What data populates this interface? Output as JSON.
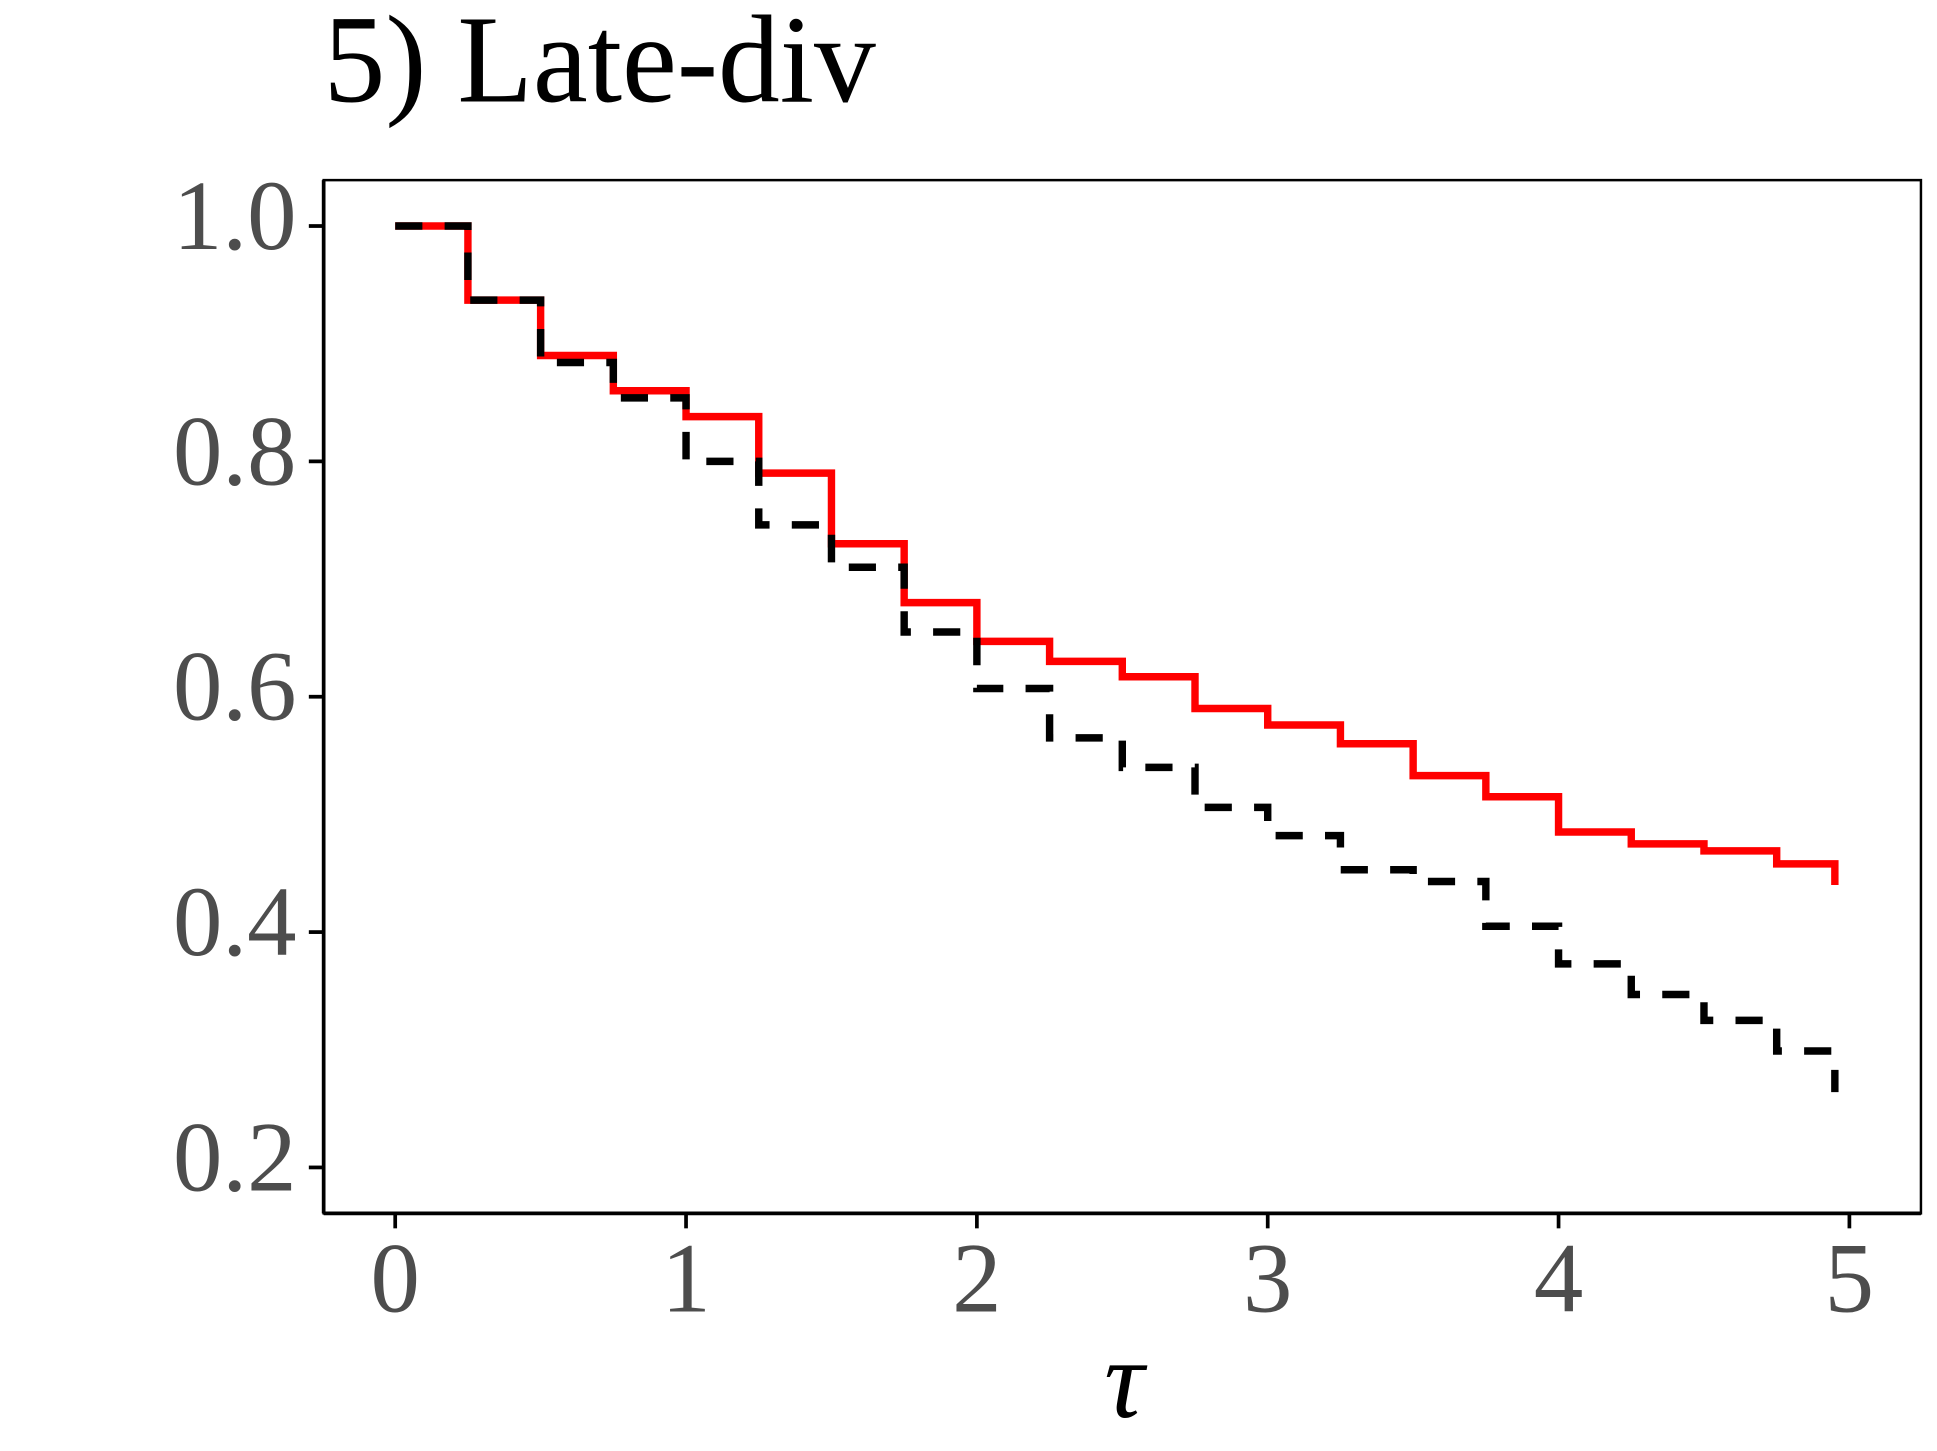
{
  "chart_data": {
    "type": "line",
    "title": "5) Late-div",
    "x_label": "τ",
    "x": [
      0,
      0.25,
      0.5,
      0.75,
      1.0,
      1.25,
      1.5,
      1.75,
      2.0,
      2.25,
      2.5,
      2.75,
      3.0,
      3.25,
      3.5,
      3.75,
      4.0,
      4.25,
      4.5,
      4.75,
      4.95
    ],
    "series": [
      {
        "color": "#ff0000",
        "linestyle": "solid",
        "values": [
          1.0,
          0.937,
          0.89,
          0.86,
          0.838,
          0.79,
          0.73,
          0.68,
          0.647,
          0.63,
          0.617,
          0.59,
          0.576,
          0.56,
          0.533,
          0.515,
          0.485,
          0.475,
          0.469,
          0.458,
          0.44
        ]
      },
      {
        "color": "#000000",
        "linestyle": "dashed",
        "values": [
          1.0,
          0.937,
          0.884,
          0.854,
          0.8,
          0.746,
          0.71,
          0.655,
          0.607,
          0.565,
          0.54,
          0.506,
          0.482,
          0.453,
          0.443,
          0.405,
          0.373,
          0.347,
          0.325,
          0.299,
          0.264
        ]
      }
    ],
    "step": "post",
    "xlim": [
      -0.246,
      5.246
    ],
    "xticks": [
      0,
      1,
      2,
      3,
      4,
      5
    ],
    "ylim": [
      0.161,
      1.039
    ],
    "yticks": [
      {
        "value": 0.2,
        "label": "0.2"
      },
      0.4,
      0.6,
      0.8,
      {
        "value": 1.0,
        "label": "1.0"
      }
    ]
  }
}
